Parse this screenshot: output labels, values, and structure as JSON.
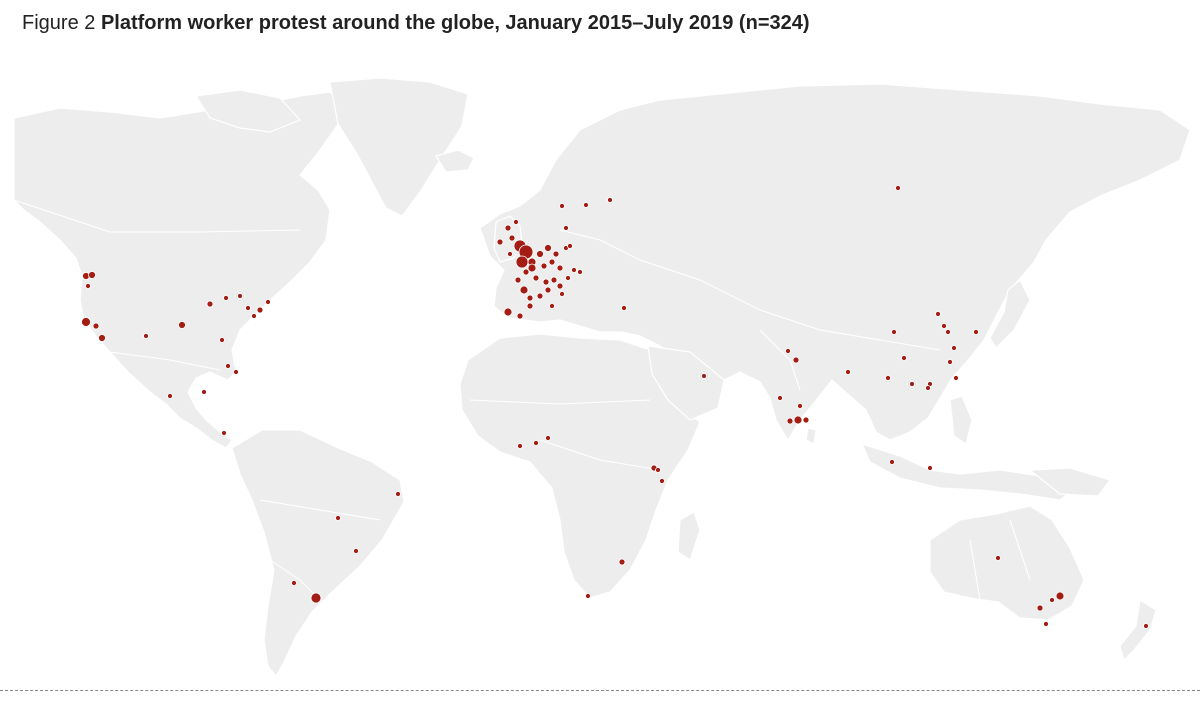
{
  "figure": {
    "number": "Figure 2",
    "title": "Platform worker protest around the globe, January 2015–July 2019 (n=324)"
  },
  "map": {
    "land_color": "#ededed",
    "border_color": "#ffffff",
    "marker_color": "#a31d14",
    "marker_stroke": "#ffffff"
  }
}
